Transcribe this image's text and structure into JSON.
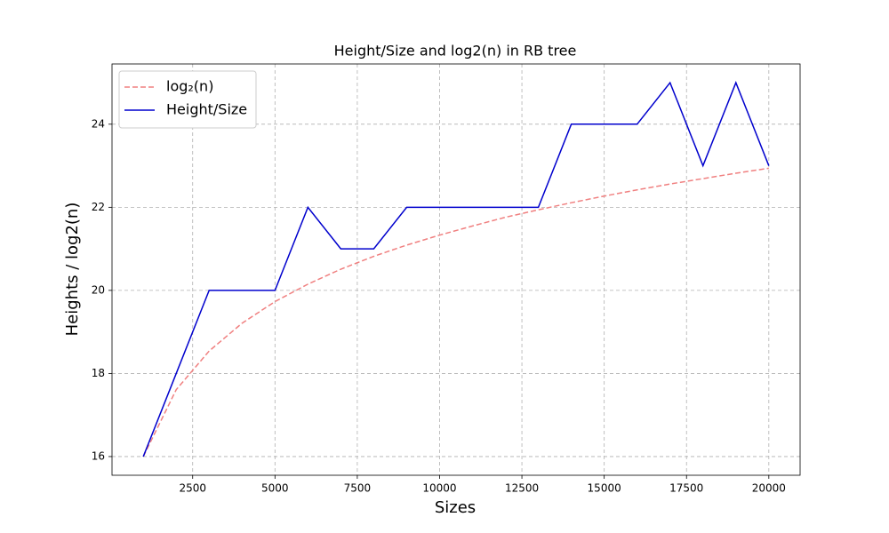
{
  "chart_data": {
    "type": "line",
    "title": "Height/Size and log2(n) in RB tree",
    "x_label": "Sizes",
    "y_label": "Heights / log2(n)",
    "x": [
      1000,
      2000,
      3000,
      4000,
      5000,
      6000,
      7000,
      8000,
      9000,
      10000,
      11000,
      12000,
      13000,
      14000,
      15000,
      16000,
      17000,
      18000,
      19000,
      20000
    ],
    "series": [
      {
        "name": "log₂(n)",
        "color": "#f08080",
        "dashed": true,
        "values": [
          16.0,
          17.61,
          18.54,
          19.21,
          19.73,
          20.15,
          20.51,
          20.82,
          21.09,
          21.33,
          21.55,
          21.76,
          21.94,
          22.11,
          22.27,
          22.42,
          22.56,
          22.69,
          22.82,
          22.94
        ]
      },
      {
        "name": "Height/Size",
        "color": "#0000cd",
        "dashed": false,
        "values": [
          16,
          18,
          20,
          20,
          20,
          22,
          21,
          21,
          22,
          22,
          22,
          22,
          22,
          24,
          24,
          24,
          25,
          23,
          25,
          23
        ]
      }
    ],
    "xlim": [
      50,
      20950
    ],
    "ylim": [
      15.55,
      25.45
    ],
    "xticks": [
      2500,
      5000,
      7500,
      10000,
      12500,
      15000,
      17500,
      20000
    ],
    "yticks": [
      16,
      18,
      20,
      22,
      24
    ],
    "grid": true,
    "legend": "upper-left"
  }
}
